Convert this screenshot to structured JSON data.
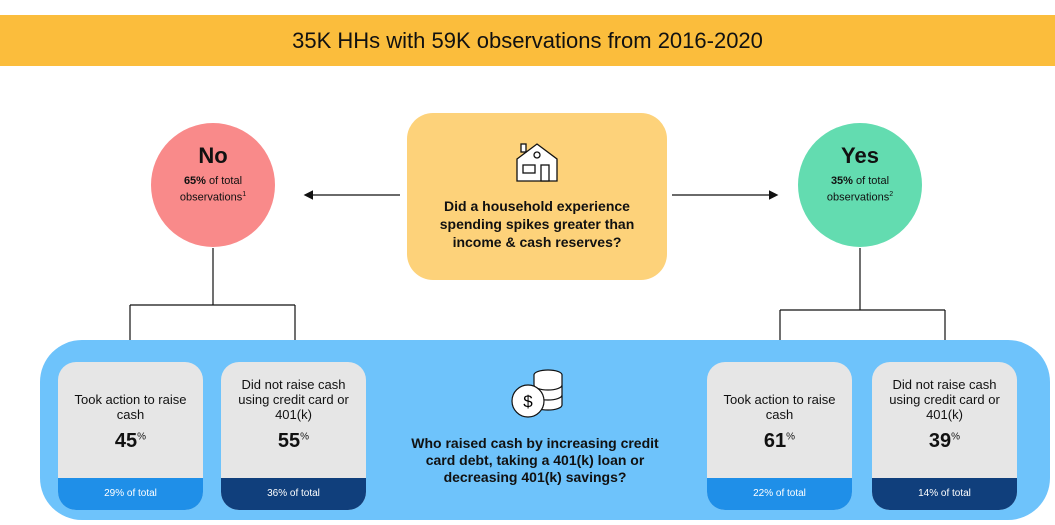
{
  "header": {
    "title": "35K HHs with 59K observations from 2016-2020"
  },
  "question": "Did a household experience spending spikes greater than income & cash reserves?",
  "branches": [
    {
      "label": "No",
      "share": "65%",
      "share_text": " of total observations",
      "note": "1",
      "boxes": [
        {
          "label": "Took action to raise cash",
          "value": "45",
          "unit": "%",
          "footer": "29% of total"
        },
        {
          "label": "Did not raise cash using credit card or 401(k)",
          "value": "55",
          "unit": "%",
          "footer": "36% of total"
        }
      ]
    },
    {
      "label": "Yes",
      "share": "35%",
      "share_text": " of total observations",
      "note": "2",
      "boxes": [
        {
          "label": "Took action to raise cash",
          "value": "61",
          "unit": "%",
          "footer": "22% of total"
        },
        {
          "label": "Did not raise cash using credit card or 401(k)",
          "value": "39",
          "unit": "%",
          "footer": "14% of total"
        }
      ]
    }
  ],
  "subquestion": "Who raised cash by increasing credit card debt, taking a 401(k) loan or decreasing 401(k) savings?"
}
